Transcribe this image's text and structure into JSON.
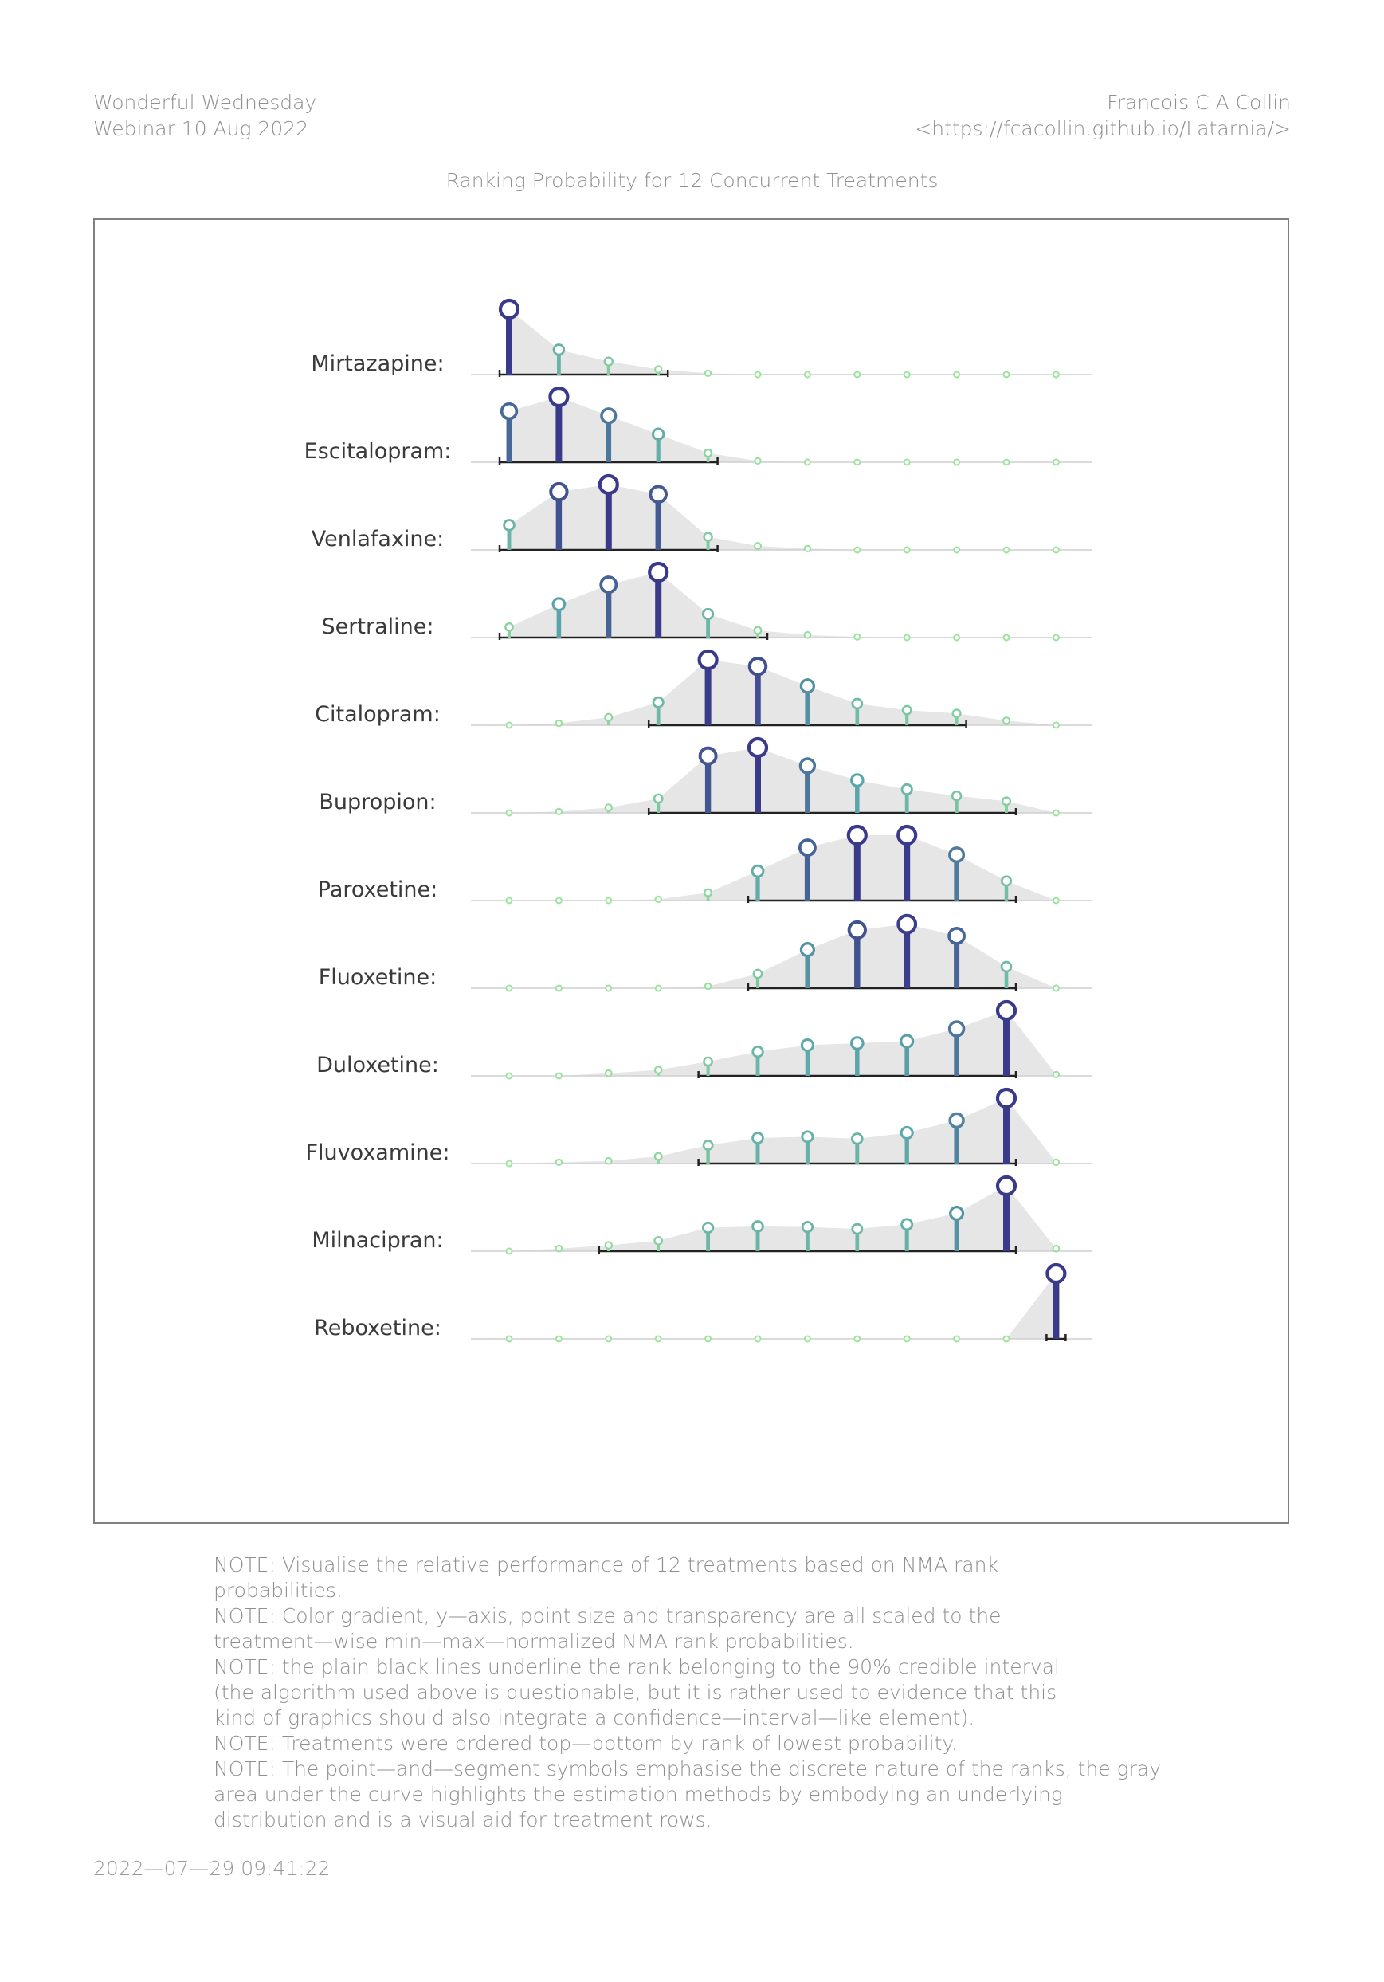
{
  "header": {
    "left_line1": "Wonderful Wednesday",
    "left_line2": "Webinar 10 Aug 2022",
    "right_line1": "Francois C A Collin",
    "right_line2": "<https://fcacollin.github.io/Latarnia/>"
  },
  "chart_data": {
    "type": "lollipop-ridgeline",
    "title": "Ranking Probability for 12 Concurrent Treatments",
    "xlabel": "",
    "ylabel": "",
    "ranks": [
      1,
      2,
      3,
      4,
      5,
      6,
      7,
      8,
      9,
      10,
      11,
      12
    ],
    "color_low": "#9be59b",
    "color_mid": "#5aa5aa",
    "color_high": "#3a3a8a",
    "area_color": "#e6e6e6",
    "series": [
      {
        "name": "Mirtazapine:",
        "values": [
          1.0,
          0.38,
          0.2,
          0.08,
          0.02,
          0.0,
          0.0,
          0.0,
          0.0,
          0.0,
          0.0,
          0.0
        ],
        "ci": [
          1,
          4
        ]
      },
      {
        "name": "Escitalopram:",
        "values": [
          0.78,
          1.0,
          0.71,
          0.43,
          0.14,
          0.02,
          0.0,
          0.0,
          0.0,
          0.0,
          0.0,
          0.0
        ],
        "ci": [
          1,
          5
        ]
      },
      {
        "name": "Venlafaxine:",
        "values": [
          0.38,
          0.89,
          1.0,
          0.85,
          0.2,
          0.06,
          0.02,
          0.0,
          0.0,
          0.0,
          0.0,
          0.0
        ],
        "ci": [
          1,
          5
        ]
      },
      {
        "name": "Sertraline:",
        "values": [
          0.16,
          0.51,
          0.81,
          1.0,
          0.36,
          0.11,
          0.04,
          0.01,
          0.0,
          0.0,
          0.0,
          0.0
        ],
        "ci": [
          1,
          6
        ]
      },
      {
        "name": "Citalopram:",
        "values": [
          0.0,
          0.03,
          0.12,
          0.35,
          1.0,
          0.9,
          0.6,
          0.33,
          0.23,
          0.18,
          0.07,
          0.0
        ],
        "ci": [
          4,
          10
        ]
      },
      {
        "name": "Bupropion:",
        "values": [
          0.0,
          0.02,
          0.08,
          0.22,
          0.87,
          1.0,
          0.72,
          0.5,
          0.36,
          0.26,
          0.18,
          0.0
        ],
        "ci": [
          4,
          11
        ]
      },
      {
        "name": "Paroxetine:",
        "values": [
          0.0,
          0.0,
          0.0,
          0.02,
          0.12,
          0.45,
          0.81,
          1.0,
          1.0,
          0.7,
          0.3,
          0.0
        ],
        "ci": [
          6,
          11
        ]
      },
      {
        "name": "Fluoxetine:",
        "values": [
          0.0,
          0.0,
          0.0,
          0.0,
          0.03,
          0.22,
          0.59,
          0.89,
          0.98,
          0.8,
          0.33,
          0.0
        ],
        "ci": [
          6,
          11
        ]
      },
      {
        "name": "Duloxetine:",
        "values": [
          0.0,
          0.0,
          0.04,
          0.09,
          0.22,
          0.37,
          0.47,
          0.5,
          0.53,
          0.72,
          1.0,
          0.02
        ],
        "ci": [
          5,
          11
        ]
      },
      {
        "name": "Fluvoxamine:",
        "values": [
          0.0,
          0.02,
          0.04,
          0.11,
          0.28,
          0.39,
          0.41,
          0.38,
          0.47,
          0.66,
          1.0,
          0.02
        ],
        "ci": [
          5,
          11
        ]
      },
      {
        "name": "Milnacipran:",
        "values": [
          0.0,
          0.04,
          0.09,
          0.16,
          0.36,
          0.38,
          0.37,
          0.34,
          0.41,
          0.58,
          1.0,
          0.04
        ],
        "ci": [
          3,
          11
        ]
      },
      {
        "name": "Reboxetine:",
        "values": [
          0.0,
          0.0,
          0.0,
          0.0,
          0.0,
          0.0,
          0.0,
          0.0,
          0.0,
          0.0,
          0.0,
          1.0
        ],
        "ci": [
          12,
          12
        ]
      }
    ]
  },
  "notes": [
    "NOTE: Visualise the relative performance of 12 treatments based on NMA rank",
    "probabilities.",
    "NOTE: Color gradient, y—axis, point size and transparency are all scaled to the",
    "treatment—wise min—max—normalized NMA rank probabilities.",
    "NOTE: the plain black lines underline the rank belonging to the 90% credible interval",
    "(the algorithm used above is questionable, but it is rather used to evidence that this",
    "kind of graphics should also integrate a confidence—interval—like element).",
    "NOTE: Treatments were ordered top—bottom by rank of lowest probability.",
    "NOTE: The point—and—segment symbols emphasise the discrete nature of the ranks, the gray",
    "area under the curve highlights the estimation methods by embodying an underlying",
    "distribution and is a visual aid for treatment rows."
  ],
  "timestamp": "2022—07—29 09:41:22"
}
